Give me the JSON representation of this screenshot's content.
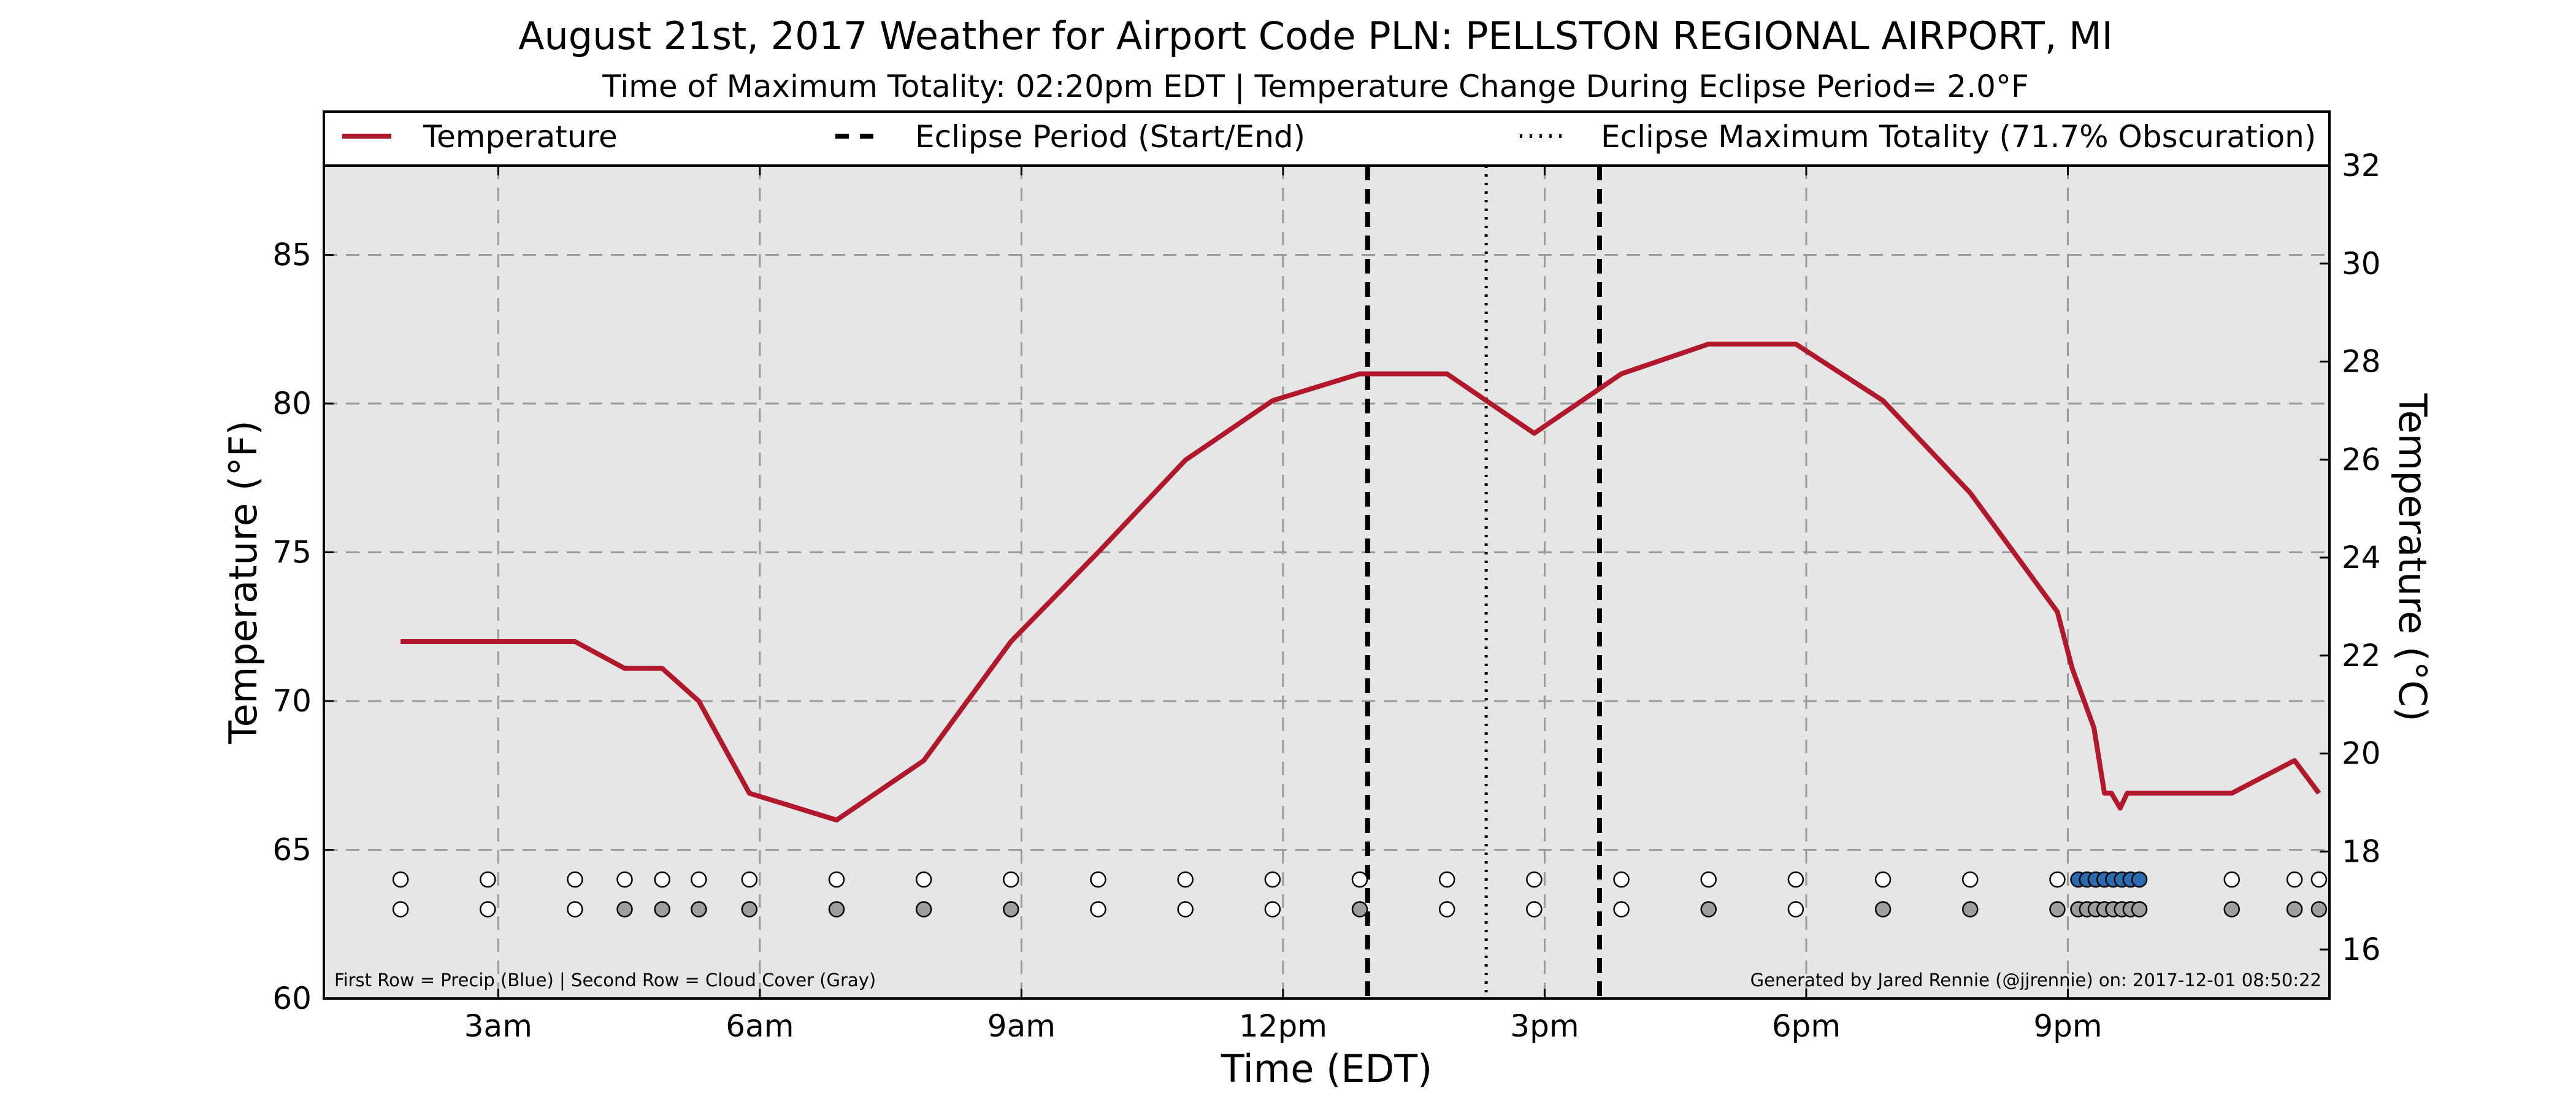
{
  "chart_data": {
    "type": "line",
    "title": "August 21st, 2017 Weather for Airport Code PLN: PELLSTON REGIONAL AIRPORT, MI",
    "subtitle": "Time of Maximum Totality: 02:20pm EDT | Temperature Change During Eclipse Period= 2.0°F",
    "xlabel": "Time (EDT)",
    "ylabel": "Temperature (°F)",
    "ylabel_right": "Temperature (°C)",
    "xlim": [
      1.0,
      24.0
    ],
    "ylim": [
      60,
      88
    ],
    "ylim_right_c": [
      15.0,
      32.0
    ],
    "x_ticks": [
      3,
      6,
      9,
      12,
      15,
      18,
      21
    ],
    "x_tick_labels": [
      "3am",
      "6am",
      "9am",
      "12pm",
      "3pm",
      "6pm",
      "9pm"
    ],
    "y_ticks": [
      60,
      65,
      70,
      75,
      80,
      85
    ],
    "y_tick_labels": [
      "60",
      "65",
      "70",
      "75",
      "80",
      "85"
    ],
    "y_right_ticks": [
      16,
      18,
      20,
      22,
      24,
      26,
      28,
      30,
      32
    ],
    "y_right_tick_labels": [
      "16",
      "18",
      "20",
      "22",
      "24",
      "26",
      "28",
      "30",
      "32"
    ],
    "grid": true,
    "legend_position": "top",
    "legend": [
      {
        "label": "Temperature",
        "style": "solid",
        "color": "#b2182b"
      },
      {
        "label": "Eclipse Period (Start/End)",
        "style": "dashed",
        "color": "#000000"
      },
      {
        "label": "Eclipse Maximum Totality (71.7% Obscuration)",
        "style": "dotted",
        "color": "#000000"
      }
    ],
    "series": [
      {
        "name": "Temperature",
        "color": "#b2182b",
        "x": [
          1.88,
          2.88,
          3.88,
          4.45,
          4.88,
          5.3,
          5.88,
          6.88,
          7.88,
          8.88,
          9.88,
          10.88,
          11.88,
          12.88,
          13.88,
          14.88,
          15.88,
          16.88,
          17.88,
          18.88,
          19.88,
          20.88,
          21.05,
          21.3,
          21.42,
          21.5,
          21.6,
          21.68,
          21.75,
          22.88,
          23.6,
          23.88
        ],
        "y": [
          72,
          72,
          72,
          71.1,
          71.1,
          70,
          66.9,
          66,
          68,
          72,
          75,
          78.1,
          80.1,
          81,
          81,
          79,
          81,
          82,
          82,
          80.1,
          77,
          73,
          71.1,
          69.1,
          66.9,
          66.9,
          66.4,
          66.9,
          66.9,
          66.9,
          68,
          66.9
        ]
      }
    ],
    "eclipse_start": 12.97,
    "eclipse_end": 15.63,
    "eclipse_max": 14.33,
    "markers_note": "First Row = Precip (Blue) | Second Row = Cloud Cover (Gray)",
    "credit": "Generated by Jared Rennie (@jjrennie) on: 2017-12-01 08:50:22",
    "precip_row": {
      "y": 64,
      "x": [
        1.88,
        2.88,
        3.88,
        4.45,
        4.88,
        5.3,
        5.88,
        6.88,
        7.88,
        8.88,
        9.88,
        10.88,
        11.88,
        12.88,
        13.88,
        14.88,
        15.88,
        16.88,
        17.88,
        18.88,
        19.88,
        20.88,
        21.12,
        21.22,
        21.32,
        21.42,
        21.52,
        21.62,
        21.72,
        21.82,
        22.88,
        23.6,
        23.88
      ],
      "filled": [
        false,
        false,
        false,
        false,
        false,
        false,
        false,
        false,
        false,
        false,
        false,
        false,
        false,
        false,
        false,
        false,
        false,
        false,
        false,
        false,
        false,
        false,
        true,
        true,
        true,
        true,
        true,
        true,
        true,
        true,
        false,
        false,
        false
      ],
      "filled_color": "#2b6cb0"
    },
    "cloud_row": {
      "y": 63,
      "x": [
        1.88,
        2.88,
        3.88,
        4.45,
        4.88,
        5.3,
        5.88,
        6.88,
        7.88,
        8.88,
        9.88,
        10.88,
        11.88,
        12.88,
        13.88,
        14.88,
        15.88,
        16.88,
        17.88,
        18.88,
        19.88,
        20.88,
        21.12,
        21.22,
        21.32,
        21.42,
        21.52,
        21.62,
        21.72,
        21.82,
        22.88,
        23.6,
        23.88
      ],
      "filled": [
        false,
        false,
        false,
        true,
        true,
        true,
        true,
        true,
        true,
        true,
        false,
        false,
        false,
        true,
        false,
        false,
        false,
        true,
        false,
        true,
        true,
        true,
        true,
        true,
        true,
        true,
        true,
        true,
        true,
        true,
        true,
        true,
        true
      ],
      "filled_color": "#9e9e9e"
    }
  }
}
